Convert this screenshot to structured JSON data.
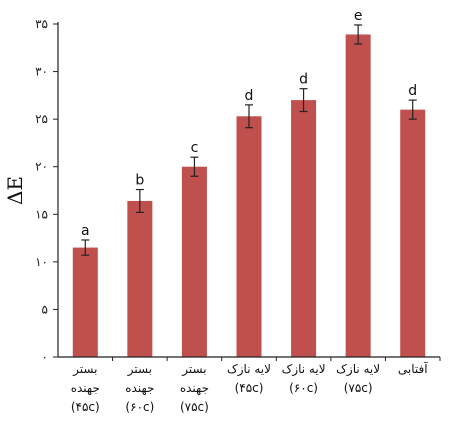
{
  "chart_data": {
    "type": "bar",
    "ylabel": "ΔE",
    "xlabel": "",
    "ylim": [
      0,
      35
    ],
    "yticks": [
      {
        "value": 0,
        "label": "۰"
      },
      {
        "value": 5,
        "label": "۵"
      },
      {
        "value": 10,
        "label": "۱۰"
      },
      {
        "value": 15,
        "label": "۱۵"
      },
      {
        "value": 20,
        "label": "۲۰"
      },
      {
        "value": 25,
        "label": "۲۵"
      },
      {
        "value": 30,
        "label": "۳۰"
      },
      {
        "value": 35,
        "label": "۳۵"
      }
    ],
    "grid": false,
    "bar_color": "#c0504d",
    "categories": [
      [
        "بستر",
        "جهنده",
        "(۴۵c)"
      ],
      [
        "بستر",
        "جهنده",
        "(۶۰c)"
      ],
      [
        "بستر",
        "جهنده",
        "(۷۵c)"
      ],
      [
        "لایه نازک",
        "(۴۵c)"
      ],
      [
        "لایه نازک",
        "(۶۰c)"
      ],
      [
        "لایه نازک",
        "(۷۵c)"
      ],
      [
        "آفتابی"
      ]
    ],
    "values": [
      11.5,
      16.4,
      20.0,
      25.3,
      27.0,
      33.9,
      26.0
    ],
    "errors": [
      0.8,
      1.2,
      1.0,
      1.2,
      1.2,
      1.0,
      1.0
    ],
    "significance_letters": [
      "a",
      "b",
      "c",
      "d",
      "d",
      "e",
      "d"
    ]
  }
}
